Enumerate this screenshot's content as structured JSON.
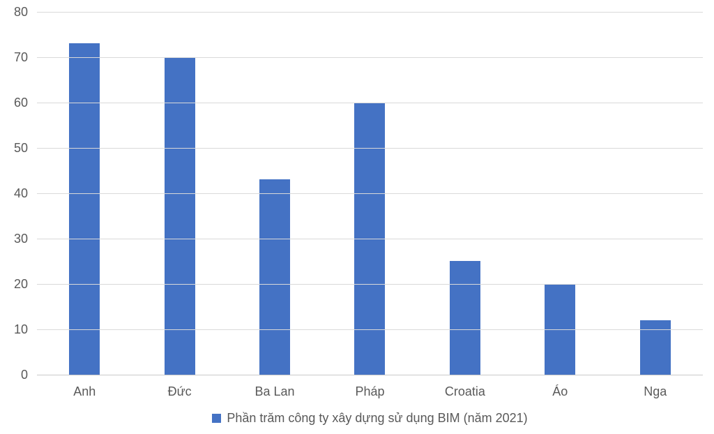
{
  "chart_data": {
    "type": "bar",
    "categories": [
      "Anh",
      "Đức",
      "Ba Lan",
      "Pháp",
      "Croatia",
      "Áo",
      "Nga"
    ],
    "values": [
      73,
      70,
      43,
      60,
      25,
      20,
      12
    ],
    "series_name": "Phần trăm công ty xây dựng sử dụng BIM (năm 2021)",
    "title": "",
    "xlabel": "",
    "ylabel": "",
    "ylim": [
      0,
      80
    ],
    "yticks": [
      0,
      10,
      20,
      30,
      40,
      50,
      60,
      70,
      80
    ],
    "grid": true,
    "legend_position": "bottom",
    "bar_color": "#4472C4",
    "gridline_color": "#D9D9D9",
    "baseline_color": "#C9C9C9",
    "label_color": "#595959",
    "background_color": "#FFFFFF"
  },
  "legend": {
    "label": "Phần trăm công ty xây dựng sử dụng BIM (năm 2021)",
    "marker": "blue-square"
  }
}
